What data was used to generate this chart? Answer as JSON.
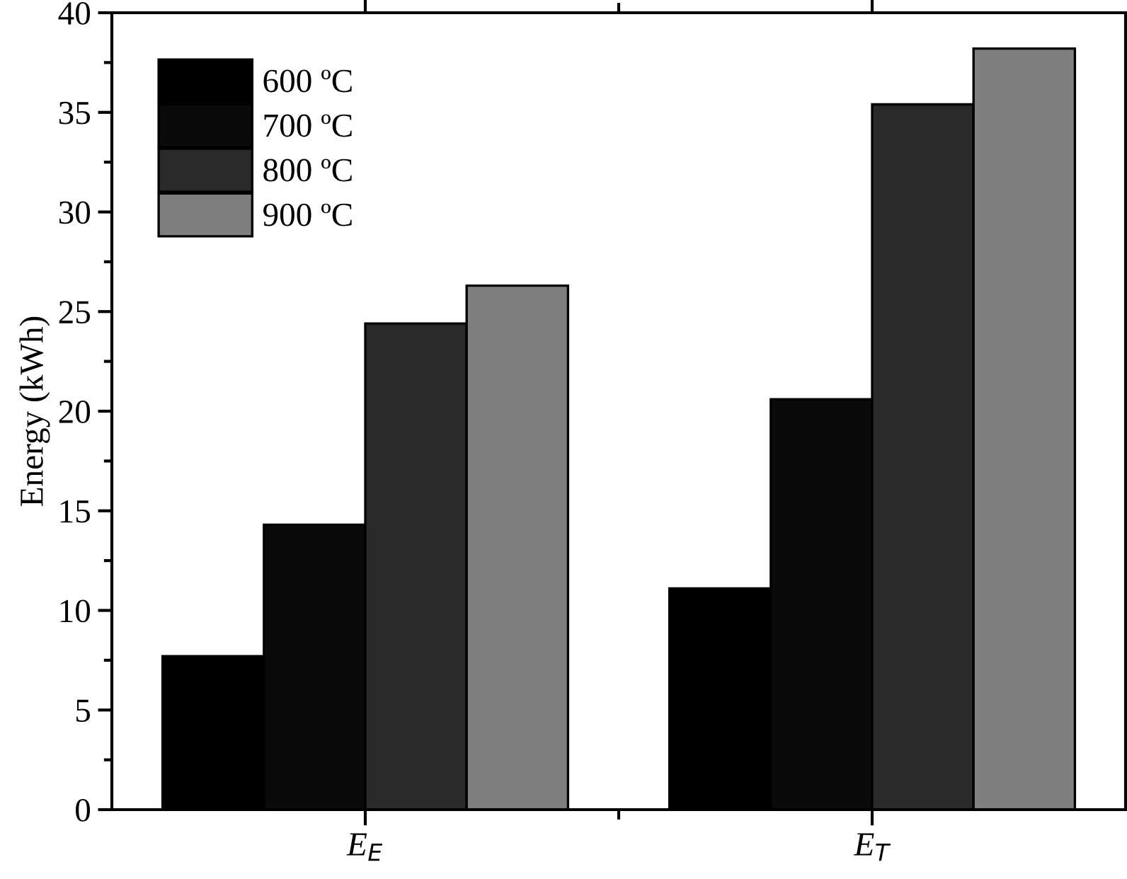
{
  "chart_data": {
    "type": "bar",
    "ylabel": "Energy (kWh)",
    "categories": [
      "E$_{E}$",
      "E$_{T}$"
    ],
    "series": [
      {
        "name": "600 ºC",
        "color": "#000000",
        "values": [
          7.7,
          11.1
        ]
      },
      {
        "name": "700 ºC",
        "color": "#0a0a0a",
        "values": [
          14.3,
          20.6
        ]
      },
      {
        "name": "800 ºC",
        "color": "#2a2a2a",
        "values": [
          24.4,
          35.4
        ]
      },
      {
        "name": "900 ºC",
        "color": "#7f7f7f",
        "values": [
          26.3,
          38.2
        ]
      }
    ],
    "ylim": [
      0,
      40
    ],
    "yticks": [
      0,
      5,
      10,
      15,
      20,
      25,
      30,
      35,
      40
    ],
    "grid": false,
    "legend": "top left"
  }
}
